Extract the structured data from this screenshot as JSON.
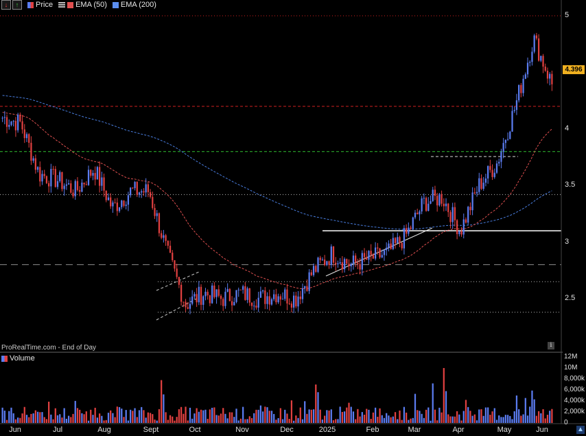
{
  "toolbar": {
    "price_label": "Price",
    "ema50_label": "EMA (50)",
    "ema200_label": "EMA (200)"
  },
  "source_label": "ProRealTime.com - End of Day",
  "volume_label": "Volume",
  "last_price_tag": "4.396",
  "colors": {
    "background": "#000000",
    "up_candle": "#5b7cf0",
    "down_candle": "#e04040",
    "ema50": "#e05050",
    "ema200": "#4a7ee0",
    "last_price_tag": "#f0b020"
  },
  "chart_data": [
    {
      "type": "candlestick",
      "title": "",
      "x_tick_labels": [
        "Jun",
        "Jul",
        "Aug",
        "Sept",
        "Oct",
        "Nov",
        "Dec",
        "2025",
        "Feb",
        "Mar",
        "Apr",
        "May",
        "Jun"
      ],
      "y_tick_labels": [
        "5",
        "4.5",
        "4",
        "3.5",
        "3",
        "2.5"
      ],
      "ylim": [
        2.2,
        5.1
      ],
      "legend": [
        "Price",
        "EMA (50)",
        "EMA (200)"
      ],
      "legend_placement": "top-left",
      "last_price": 4.396,
      "close_path": [
        {
          "month": "Jun",
          "close": 4.1
        },
        {
          "month": "Jun-mid",
          "close": 4.05
        },
        {
          "month": "Jun-late",
          "close": 3.6
        },
        {
          "month": "Jul",
          "close": 3.55
        },
        {
          "month": "Jul-mid",
          "close": 3.45
        },
        {
          "month": "Jul-late",
          "close": 3.65
        },
        {
          "month": "Aug",
          "close": 3.3
        },
        {
          "month": "Aug-mid",
          "close": 3.45
        },
        {
          "month": "Aug-late",
          "close": 3.45
        },
        {
          "month": "Sept",
          "close": 2.9
        },
        {
          "month": "Sept-mid",
          "close": 2.45
        },
        {
          "month": "Sept-late",
          "close": 2.55
        },
        {
          "month": "Oct",
          "close": 2.5
        },
        {
          "month": "Oct-mid",
          "close": 2.55
        },
        {
          "month": "Nov",
          "close": 2.5
        },
        {
          "month": "Nov-mid",
          "close": 2.55
        },
        {
          "month": "Dec",
          "close": 2.5
        },
        {
          "month": "Dec-mid",
          "close": 2.75
        },
        {
          "month": "Jan",
          "close": 2.9
        },
        {
          "month": "Jan-mid",
          "close": 2.8
        },
        {
          "month": "Feb",
          "close": 2.85
        },
        {
          "month": "Feb-mid",
          "close": 2.9
        },
        {
          "month": "Mar",
          "close": 3.05
        },
        {
          "month": "Mar-mid",
          "close": 3.35
        },
        {
          "month": "Apr",
          "close": 3.4
        },
        {
          "month": "Apr-mid",
          "close": 3.1
        },
        {
          "month": "Apr-late",
          "close": 3.5
        },
        {
          "month": "May",
          "close": 3.7
        },
        {
          "month": "May-mid",
          "close": 4.2
        },
        {
          "month": "May-late",
          "close": 4.8
        },
        {
          "month": "Jun",
          "close": 4.396
        }
      ],
      "horizontal_levels": [
        {
          "value": 5.0,
          "style": "dotted",
          "color": "#d02020"
        },
        {
          "value": 4.2,
          "style": "dashed",
          "color": "#d02020"
        },
        {
          "value": 3.8,
          "style": "dashed",
          "color": "#30c030"
        },
        {
          "value": 3.42,
          "style": "dotted",
          "color": "#bbbbbb"
        },
        {
          "value": 3.1,
          "style": "solid",
          "color": "#ffffff"
        },
        {
          "value": 2.8,
          "style": "dashed",
          "color": "#888888"
        },
        {
          "value": 2.65,
          "style": "dotted",
          "color": "#bbbbbb"
        },
        {
          "value": 2.38,
          "style": "dotted",
          "color": "#bbbbbb"
        }
      ]
    },
    {
      "type": "bar",
      "title": "Volume",
      "y_tick_labels": [
        "12M",
        "10M",
        "8,000k",
        "6,000k",
        "4,000k",
        "2,000k",
        "0"
      ],
      "ylim": [
        0,
        12000000
      ],
      "description_values_k": "daily volumes mostly 500k–4,000k with spikes near 8,000k (Sept, Dec, Mar) and ~10M (Mar)"
    }
  ]
}
